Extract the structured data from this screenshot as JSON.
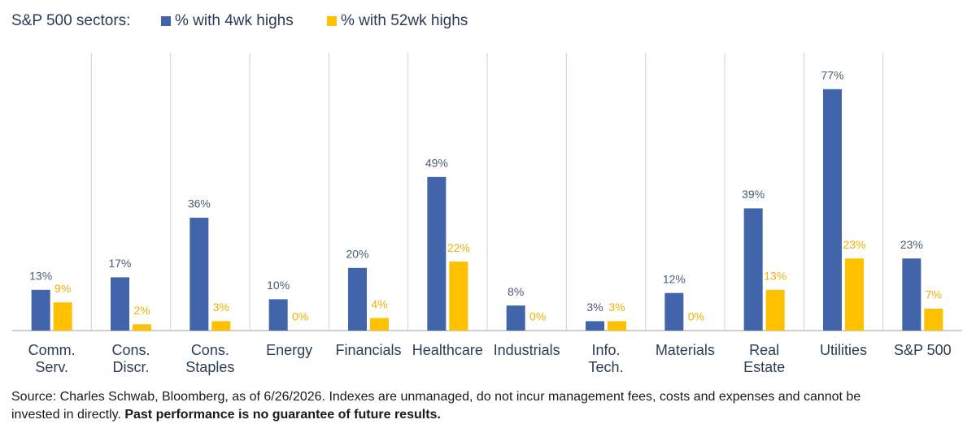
{
  "chart_data": {
    "type": "bar",
    "legend_title": "S&P 500 sectors:",
    "categories": [
      [
        "Comm.",
        "Serv."
      ],
      [
        "Cons.",
        "Discr."
      ],
      [
        "Cons.",
        "Staples"
      ],
      [
        "Energy"
      ],
      [
        "Financials"
      ],
      [
        "Healthcare"
      ],
      [
        "Industrials"
      ],
      [
        "Info.",
        "Tech."
      ],
      [
        "Materials"
      ],
      [
        "Real",
        "Estate"
      ],
      [
        "Utilities"
      ],
      [
        "S&P 500"
      ]
    ],
    "series": [
      {
        "name": "% with 4wk highs",
        "color": "#4264ab",
        "label_color": "#4a5a78",
        "values": [
          13,
          17,
          36,
          10,
          20,
          49,
          8,
          3,
          12,
          39,
          77,
          23
        ],
        "value_labels": [
          "13%",
          "17%",
          "36%",
          "10%",
          "20%",
          "49%",
          "8%",
          "3%",
          "12%",
          "39%",
          "77%",
          "23%"
        ]
      },
      {
        "name": "% with 52wk highs",
        "color": "#ffc000",
        "label_color": "#f0b000",
        "values": [
          9,
          2,
          3,
          0,
          4,
          22,
          0,
          3,
          0,
          13,
          23,
          7
        ],
        "value_labels": [
          "9%",
          "2%",
          "3%",
          "0%",
          "4%",
          "22%",
          "0%",
          "3%",
          "0%",
          "13%",
          "23%",
          "7%"
        ]
      }
    ],
    "source": "Source: Charles Schwab, Bloomberg, as of 6/26/2026.   Indexes are unmanaged, do not incur management fees, costs and expenses and cannot be invested in directly. ",
    "source_bold": "Past performance is no guarantee of future results."
  }
}
